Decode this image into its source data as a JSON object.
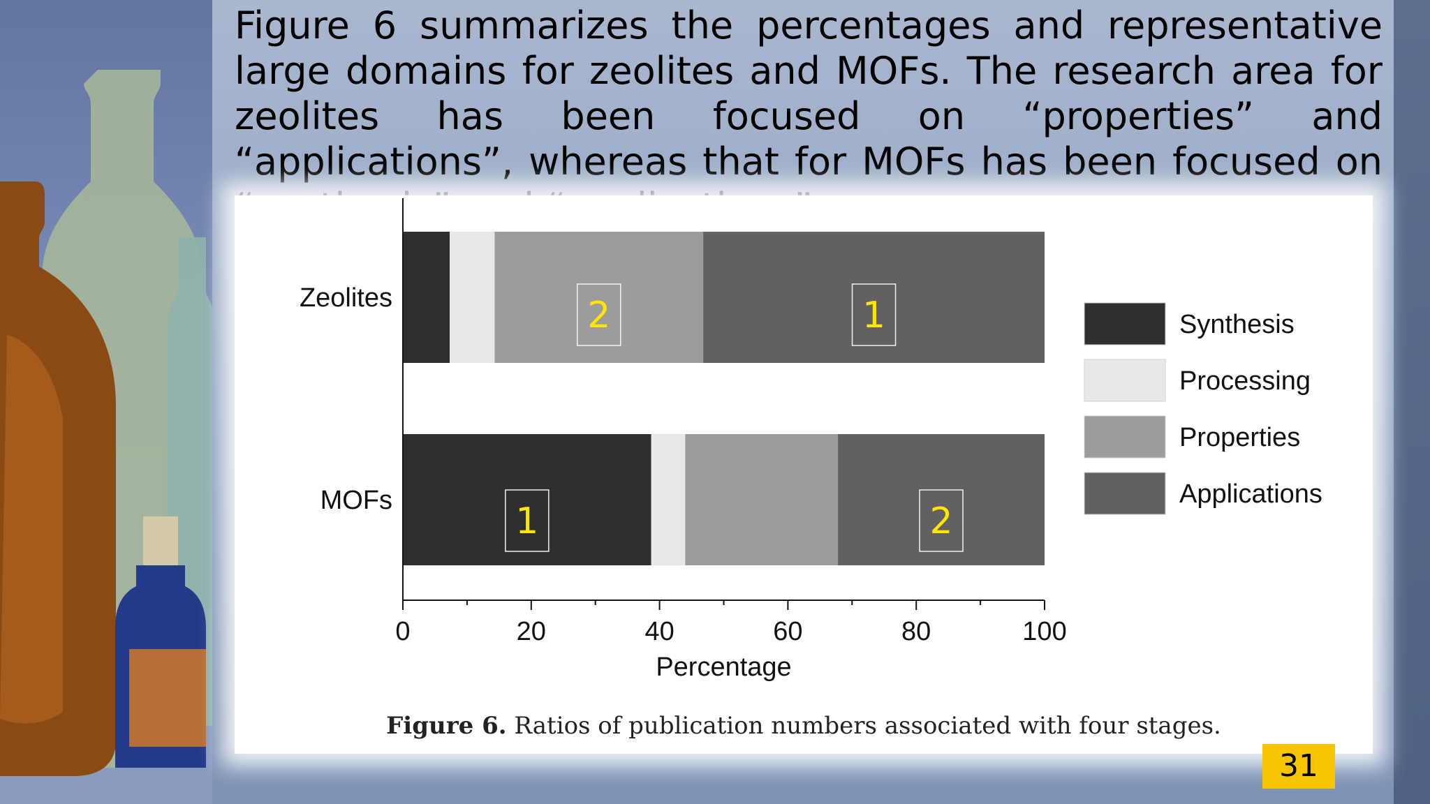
{
  "slide": {
    "intro_text": "Figure 6 summarizes the percentages and representative large domains for zeolites and MOFs. The research area for zeolites has been focused on “properties” and “applications”, whereas that for MOFs has been focused on “synthesis” and “applications”.",
    "caption_bold": "Figure 6.",
    "caption_text": " Ratios of publication numbers associated with four stages.",
    "page_number": "31"
  },
  "chart_data": {
    "type": "bar",
    "orientation": "horizontal",
    "stacked": true,
    "categories": [
      "Zeolites",
      "MOFs"
    ],
    "series": [
      {
        "name": "Synthesis",
        "color": "#2f2f2f",
        "values": [
          7.3,
          38.7
        ]
      },
      {
        "name": "Processing",
        "color": "#e8e8e8",
        "values": [
          7.0,
          5.3
        ]
      },
      {
        "name": "Properties",
        "color": "#9c9c9c",
        "values": [
          32.5,
          23.8
        ]
      },
      {
        "name": "Applications",
        "color": "#636063",
        "values": [
          53.2,
          32.2
        ]
      }
    ],
    "xlabel": "Percentage",
    "ylabel": "",
    "title": "",
    "xlim": [
      0,
      100
    ],
    "xticks": [
      0,
      20,
      40,
      60,
      80,
      100
    ],
    "legend": "right",
    "grid": false,
    "rank_annotations": [
      {
        "category": "Zeolites",
        "series": "Properties",
        "label": "2"
      },
      {
        "category": "Zeolites",
        "series": "Applications",
        "label": "1"
      },
      {
        "category": "MOFs",
        "series": "Synthesis",
        "label": "1"
      },
      {
        "category": "MOFs",
        "series": "Applications",
        "label": "2"
      }
    ],
    "rank_color": "#ffe600"
  }
}
